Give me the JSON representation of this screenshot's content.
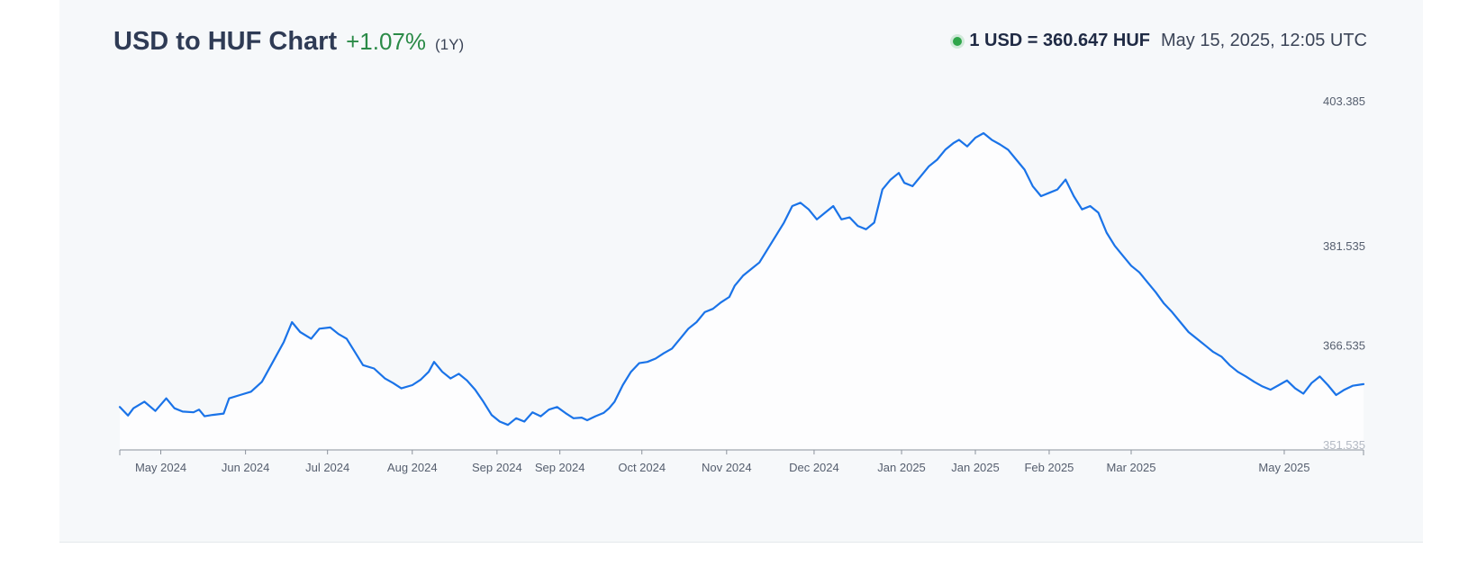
{
  "header": {
    "title": "USD to HUF Chart",
    "change": "+1.07%",
    "period": "(1Y)",
    "rate": "1 USD = 360.647 HUF",
    "timestamp": "May 15, 2025, 12:05 UTC"
  },
  "colors": {
    "line": "#1a73e8",
    "positive": "#2a8a47",
    "live_dot": "#2fa64a"
  },
  "chart_data": {
    "type": "line",
    "series_name": "USD to HUF",
    "y_ticks": [
      "403.385",
      "381.535",
      "366.535",
      "351.535"
    ],
    "y_tick_values": [
      403.385,
      381.535,
      366.535,
      351.535
    ],
    "ylim": [
      351.535,
      403.385
    ],
    "x_tick_labels": [
      "May 2024",
      "Jun 2024",
      "Jul 2024",
      "Aug 2024",
      "Sep 2024",
      "Sep 2024",
      "Oct 2024",
      "Nov 2024",
      "Dec 2024",
      "Jan 2025",
      "Jan 2025",
      "Feb 2025",
      "Mar 2025",
      "May 2025"
    ],
    "x_tick_days": [
      15,
      46,
      76,
      107,
      138,
      161,
      191,
      222,
      254,
      286,
      313,
      340,
      370,
      426
    ],
    "x_range_days": [
      0,
      455
    ],
    "points": [
      [
        0,
        357.2
      ],
      [
        3,
        355.9
      ],
      [
        5,
        357.0
      ],
      [
        9,
        358.0
      ],
      [
        13,
        356.6
      ],
      [
        17,
        358.5
      ],
      [
        20,
        357.0
      ],
      [
        23,
        356.5
      ],
      [
        27,
        356.4
      ],
      [
        29,
        356.8
      ],
      [
        31,
        355.8
      ],
      [
        34,
        356.0
      ],
      [
        38,
        356.2
      ],
      [
        40,
        358.5
      ],
      [
        44,
        359.0
      ],
      [
        48,
        359.5
      ],
      [
        52,
        361.0
      ],
      [
        56,
        364.0
      ],
      [
        60,
        367.0
      ],
      [
        63,
        370.0
      ],
      [
        66,
        368.5
      ],
      [
        70,
        367.5
      ],
      [
        73,
        369.0
      ],
      [
        77,
        369.2
      ],
      [
        80,
        368.2
      ],
      [
        83,
        367.5
      ],
      [
        86,
        365.5
      ],
      [
        89,
        363.5
      ],
      [
        93,
        363.0
      ],
      [
        97,
        361.5
      ],
      [
        100,
        360.8
      ],
      [
        103,
        360.0
      ],
      [
        107,
        360.5
      ],
      [
        110,
        361.3
      ],
      [
        113,
        362.5
      ],
      [
        115,
        364.0
      ],
      [
        118,
        362.5
      ],
      [
        121,
        361.5
      ],
      [
        124,
        362.2
      ],
      [
        127,
        361.2
      ],
      [
        130,
        359.8
      ],
      [
        133,
        358.0
      ],
      [
        136,
        356.0
      ],
      [
        139,
        355.0
      ],
      [
        142,
        354.5
      ],
      [
        145,
        355.5
      ],
      [
        148,
        355.0
      ],
      [
        151,
        356.4
      ],
      [
        154,
        355.8
      ],
      [
        157,
        356.8
      ],
      [
        160,
        357.2
      ],
      [
        163,
        356.3
      ],
      [
        166,
        355.5
      ],
      [
        169,
        355.6
      ],
      [
        171,
        355.2
      ],
      [
        174,
        355.8
      ],
      [
        177,
        356.3
      ],
      [
        179,
        357.0
      ],
      [
        181,
        358.0
      ],
      [
        184,
        360.5
      ],
      [
        187,
        362.5
      ],
      [
        190,
        363.8
      ],
      [
        193,
        364.0
      ],
      [
        196,
        364.5
      ],
      [
        199,
        365.3
      ],
      [
        202,
        366.0
      ],
      [
        205,
        367.5
      ],
      [
        208,
        369.0
      ],
      [
        211,
        370.0
      ],
      [
        214,
        371.5
      ],
      [
        217,
        372.0
      ],
      [
        220,
        373.0
      ],
      [
        223,
        373.8
      ],
      [
        225,
        375.5
      ],
      [
        228,
        377.0
      ],
      [
        231,
        378.0
      ],
      [
        234,
        379.0
      ],
      [
        237,
        381.0
      ],
      [
        240,
        383.0
      ],
      [
        243,
        385.0
      ],
      [
        246,
        387.5
      ],
      [
        249,
        388.0
      ],
      [
        252,
        387.0
      ],
      [
        255,
        385.5
      ],
      [
        258,
        386.5
      ],
      [
        261,
        387.5
      ],
      [
        264,
        385.5
      ],
      [
        267,
        385.8
      ],
      [
        270,
        384.5
      ],
      [
        273,
        384.0
      ],
      [
        276,
        385.0
      ],
      [
        279,
        390.0
      ],
      [
        282,
        391.5
      ],
      [
        285,
        392.5
      ],
      [
        287,
        391.0
      ],
      [
        290,
        390.5
      ],
      [
        293,
        392.0
      ],
      [
        296,
        393.5
      ],
      [
        299,
        394.5
      ],
      [
        302,
        396.0
      ],
      [
        305,
        397.0
      ],
      [
        307,
        397.5
      ],
      [
        310,
        396.5
      ],
      [
        313,
        397.8
      ],
      [
        316,
        398.5
      ],
      [
        319,
        397.5
      ],
      [
        322,
        396.8
      ],
      [
        325,
        396.0
      ],
      [
        328,
        394.5
      ],
      [
        331,
        393.0
      ],
      [
        334,
        390.5
      ],
      [
        337,
        389.0
      ],
      [
        340,
        389.5
      ],
      [
        343,
        390.0
      ],
      [
        346,
        391.5
      ],
      [
        349,
        389.0
      ],
      [
        352,
        387.0
      ],
      [
        355,
        387.5
      ],
      [
        358,
        386.5
      ],
      [
        361,
        383.5
      ],
      [
        364,
        381.5
      ],
      [
        367,
        380.0
      ],
      [
        370,
        378.5
      ],
      [
        373,
        377.5
      ],
      [
        376,
        376.0
      ],
      [
        379,
        374.5
      ],
      [
        382,
        372.8
      ],
      [
        385,
        371.5
      ],
      [
        388,
        370.0
      ],
      [
        391,
        368.5
      ],
      [
        394,
        367.5
      ],
      [
        397,
        366.5
      ],
      [
        400,
        365.5
      ],
      [
        403,
        364.8
      ],
      [
        406,
        363.5
      ],
      [
        409,
        362.5
      ],
      [
        412,
        361.8
      ],
      [
        415,
        361.0
      ],
      [
        418,
        360.3
      ],
      [
        421,
        359.8
      ],
      [
        424,
        360.5
      ],
      [
        427,
        361.2
      ],
      [
        430,
        360.0
      ],
      [
        433,
        359.2
      ],
      [
        436,
        360.8
      ],
      [
        439,
        361.8
      ],
      [
        442,
        360.5
      ],
      [
        445,
        359.0
      ],
      [
        448,
        359.8
      ],
      [
        451,
        360.4
      ],
      [
        455,
        360.647
      ]
    ]
  }
}
